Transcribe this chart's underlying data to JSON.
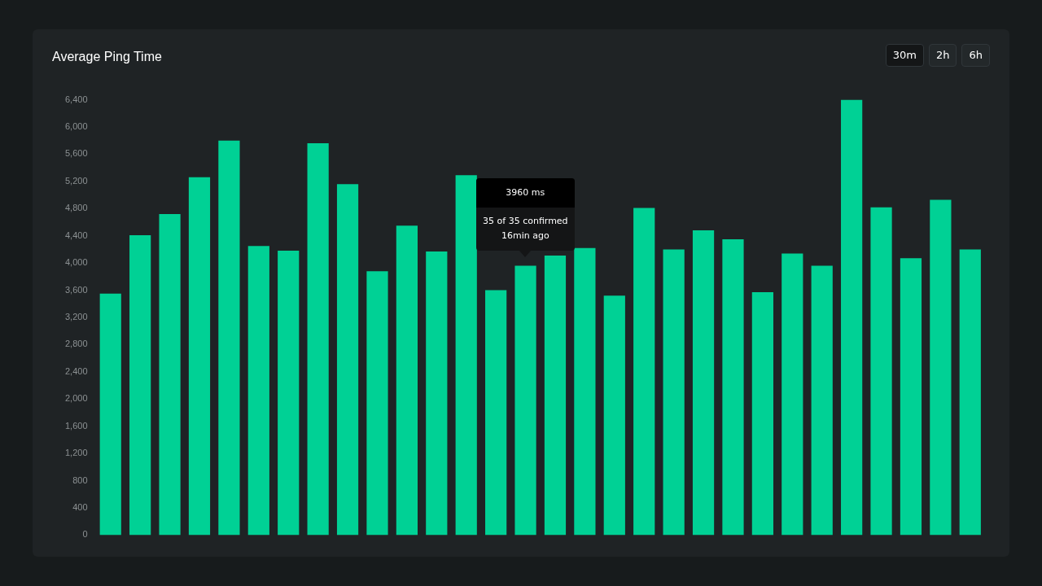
{
  "chart_data": {
    "type": "bar",
    "title": "Average Ping Time",
    "categories": [
      null,
      null,
      null,
      null,
      null,
      null,
      null,
      null,
      null,
      null,
      null,
      null,
      null,
      null,
      null,
      null,
      null,
      null,
      null,
      null,
      null,
      null,
      null,
      null,
      null,
      null,
      null,
      null,
      null,
      null
    ],
    "values": [
      3550,
      4410,
      4720,
      5260,
      5800,
      4250,
      4180,
      5760,
      5160,
      3880,
      4550,
      4170,
      5290,
      3600,
      3960,
      4110,
      4220,
      3520,
      4810,
      4200,
      4480,
      4350,
      3570,
      4140,
      3960,
      6400,
      4820,
      4070,
      4930,
      4200
    ],
    "color": "#00d195",
    "ylim": [
      0,
      6400
    ],
    "yticks": [
      0,
      400,
      800,
      {
        "value": 1200,
        "label": "1,200"
      },
      {
        "value": 1600,
        "label": "1,600"
      },
      {
        "value": 2000,
        "label": "2,000"
      },
      {
        "value": 2400,
        "label": "2,400"
      },
      {
        "value": 2800,
        "label": "2,800"
      },
      {
        "value": 3200,
        "label": "3,200"
      },
      {
        "value": 3600,
        "label": "3,600"
      },
      {
        "value": 4000,
        "label": "4,000"
      },
      {
        "value": 4400,
        "label": "4,400"
      },
      {
        "value": 4800,
        "label": "4,800"
      },
      {
        "value": 5200,
        "label": "5,200"
      },
      {
        "value": 5600,
        "label": "5,600"
      },
      {
        "value": 6000,
        "label": "6,000"
      },
      {
        "value": 6400,
        "label": "6,400"
      }
    ],
    "tick_labels": "y",
    "annotations": [
      "30m",
      "2h",
      "6h",
      "3960 ms",
      "35 of 35 confirmed",
      "16min ago"
    ]
  }
}
